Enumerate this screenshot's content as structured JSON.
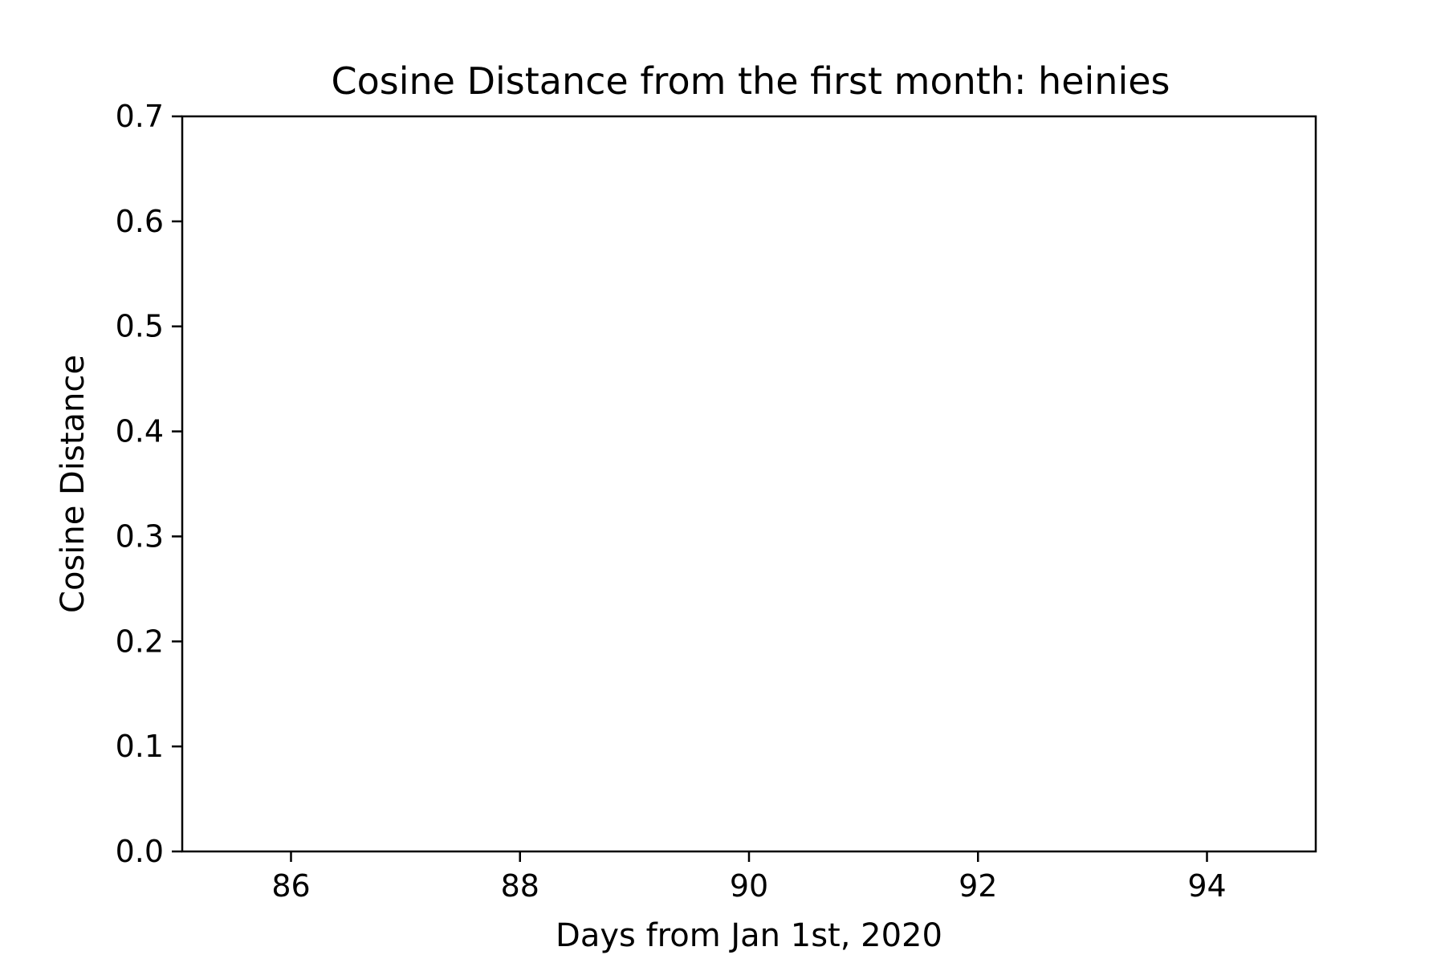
{
  "chart_data": {
    "type": "line",
    "title": "Cosine Distance from the first month: heinies",
    "xlabel": "Days from Jan 1st, 2020",
    "ylabel": "Cosine Distance",
    "xlim": [
      85.05,
      94.95
    ],
    "ylim": [
      0.0,
      0.7
    ],
    "x_ticks": [
      86,
      88,
      90,
      92,
      94
    ],
    "x_tick_labels": [
      "86",
      "88",
      "90",
      "92",
      "94"
    ],
    "y_ticks": [
      0.0,
      0.1,
      0.2,
      0.3,
      0.4,
      0.5,
      0.6,
      0.7
    ],
    "y_tick_labels": [
      "0.0",
      "0.1",
      "0.2",
      "0.3",
      "0.4",
      "0.5",
      "0.6",
      "0.7"
    ],
    "grid": false,
    "series": []
  }
}
